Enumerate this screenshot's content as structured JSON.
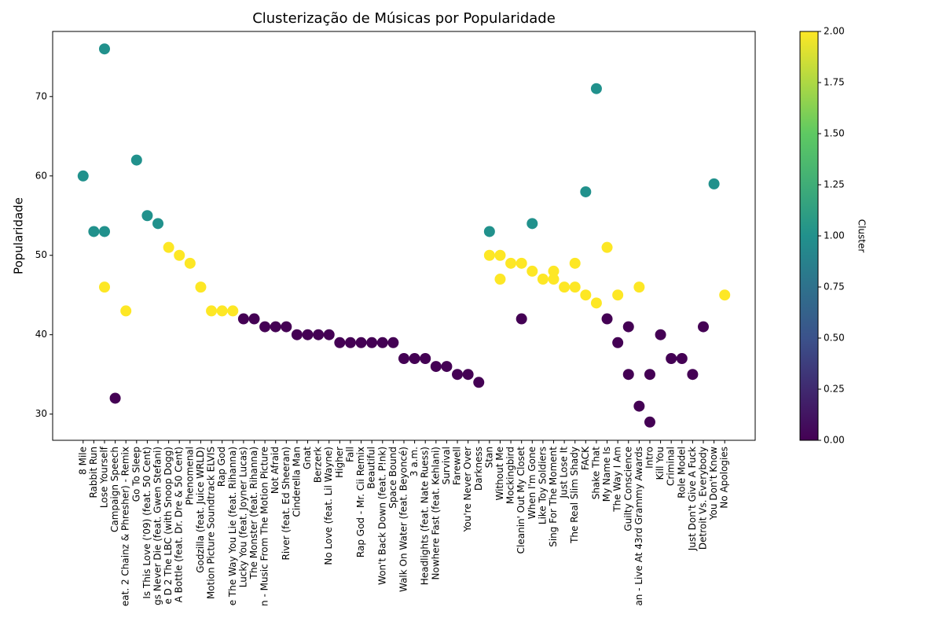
{
  "chart_data": {
    "type": "scatter",
    "title": "Clusterização de Músicas por Popularidade",
    "y_label": "Popularidade",
    "categories": [
      "8 Mile",
      "Rabbit Run",
      "Lose Yourself",
      "Campaign Speech",
      "eat. 2 Chainz & Phresher) - Remix",
      "Go To Sleep",
      "Is This Love ('09) (feat. 50 Cent)",
      "gs Never Die (feat. Gwen Stefani)",
      "e D 2 The LBC (with Snoop Dogg)",
      "A Bottle (feat. Dr. Dre & 50 Cent)",
      "Phenomenal",
      "Godzilla (feat. Juice WRLD)",
      "Motion Picture Soundtrack ELVIS",
      "Rap God",
      "e The Way You Lie (feat. Rihanna)",
      "Lucky You (feat. Joyner Lucas)",
      "The Monster (feat. Rihanna)",
      "n - Music From The Motion Picture",
      "Not Afraid",
      "River (feat. Ed Sheeran)",
      "Cinderella Man",
      "Gnat",
      "Berzerk",
      "No Love (feat. Lil Wayne)",
      "Higher",
      "Fall",
      "Rap God - Mr. Cii Remix",
      "Beautiful",
      "Won't Back Down (feat. P!nk)",
      "Space Bound",
      "Walk On Water (feat. Beyoncé)",
      "3 a.m.",
      "Headlights (feat. Nate Ruess)",
      "Nowhere Fast (feat. Kehlani)",
      "Survival",
      "Farewell",
      "You're Never Over",
      "Darkness",
      "Stan",
      "Without Me",
      "Mockingbird",
      "Cleanin' Out My Closet",
      "When I'm Gone",
      "Like Toy Soldiers",
      "Sing For The Moment",
      "Just Lose It",
      "The Real Slim Shady",
      "FACK",
      "Shake That",
      "My Name Is",
      "The Way I Am",
      "Guilty Conscience",
      "an - Live At 43rd Grammy Awards",
      "Intro",
      "Kill You",
      "Criminal",
      "Role Model",
      "Just Don't Give A Fuck",
      "Detroit Vs. Everybody",
      "You Don't Know",
      "No Apologies"
    ],
    "points": {
      "x": [
        "8 Mile",
        "Rabbit Run",
        "Lose Yourself",
        "Lose Yourself",
        "Lose Yourself",
        "Campaign Speech",
        "eat. 2 Chainz & Phresher) - Remix",
        "Go To Sleep",
        "Is This Love ('09) (feat. 50 Cent)",
        "gs Never Die (feat. Gwen Stefani)",
        "e D 2 The LBC (with Snoop Dogg)",
        "A Bottle (feat. Dr. Dre & 50 Cent)",
        "Phenomenal",
        "Godzilla (feat. Juice WRLD)",
        "Motion Picture Soundtrack ELVIS",
        "Rap God",
        "e The Way You Lie (feat. Rihanna)",
        "Lucky You (feat. Joyner Lucas)",
        "The Monster (feat. Rihanna)",
        "n - Music From The Motion Picture",
        "Not Afraid",
        "River (feat. Ed Sheeran)",
        "Cinderella Man",
        "Gnat",
        "Berzerk",
        "No Love (feat. Lil Wayne)",
        "Higher",
        "Fall",
        "Rap God - Mr. Cii Remix",
        "Beautiful",
        "Won't Back Down (feat. P!nk)",
        "Space Bound",
        "Walk On Water (feat. Beyoncé)",
        "3 a.m.",
        "Headlights (feat. Nate Ruess)",
        "Nowhere Fast (feat. Kehlani)",
        "Survival",
        "Farewell",
        "You're Never Over",
        "Darkness",
        "Stan",
        "Stan",
        "Without Me",
        "Without Me",
        "Mockingbird",
        "Cleanin' Out My Closet",
        "Cleanin' Out My Closet",
        "When I'm Gone",
        "When I'm Gone",
        "Like Toy Soldiers",
        "Sing For The Moment",
        "Sing For The Moment",
        "Just Lose It",
        "The Real Slim Shady",
        "The Real Slim Shady",
        "FACK",
        "FACK",
        "Shake That",
        "Shake That",
        "My Name Is",
        "My Name Is",
        "The Way I Am",
        "The Way I Am",
        "Guilty Conscience",
        "Guilty Conscience",
        "an - Live At 43rd Grammy Awards",
        "an - Live At 43rd Grammy Awards",
        "Intro",
        "Intro",
        "Kill You",
        "Criminal",
        "Role Model",
        "Just Don't Give A Fuck",
        "Detroit Vs. Everybody",
        "You Don't Know",
        "No Apologies"
      ],
      "y": [
        60,
        53,
        76,
        53,
        46,
        32,
        43,
        62,
        55,
        54,
        51,
        50,
        49,
        46,
        43,
        43,
        43,
        42,
        42,
        41,
        41,
        41,
        40,
        40,
        40,
        40,
        39,
        39,
        39,
        39,
        39,
        39,
        37,
        37,
        37,
        36,
        36,
        35,
        35,
        34,
        53,
        50,
        50,
        47,
        49,
        49,
        42,
        54,
        48,
        47,
        48,
        47,
        46,
        49,
        46,
        58,
        45,
        71,
        44,
        51,
        42,
        45,
        39,
        41,
        35,
        46,
        31,
        35,
        29,
        40,
        37,
        37,
        35,
        41,
        59,
        45
      ],
      "cluster": [
        1,
        1,
        1,
        1,
        2,
        0,
        2,
        1,
        1,
        1,
        2,
        2,
        2,
        2,
        2,
        2,
        2,
        0,
        0,
        0,
        0,
        0,
        0,
        0,
        0,
        0,
        0,
        0,
        0,
        0,
        0,
        0,
        0,
        0,
        0,
        0,
        0,
        0,
        0,
        0,
        1,
        2,
        2,
        2,
        2,
        2,
        0,
        1,
        2,
        2,
        2,
        2,
        2,
        2,
        2,
        1,
        2,
        1,
        2,
        2,
        0,
        2,
        0,
        0,
        0,
        2,
        0,
        0,
        0,
        0,
        0,
        0,
        0,
        0,
        1,
        2
      ]
    },
    "ylim": [
      26.7,
      78.2
    ],
    "yticks": [
      30,
      40,
      50,
      60,
      70
    ],
    "colorbar": {
      "label": "Cluster",
      "lim": [
        0,
        2
      ],
      "ticks": [
        {
          "value": 0,
          "label": "0.00"
        },
        {
          "value": 0.25,
          "label": "0.25"
        },
        {
          "value": 0.5,
          "label": "0.50"
        },
        {
          "value": 0.75,
          "label": "0.75"
        },
        {
          "value": 1,
          "label": "1.00"
        },
        {
          "value": 1.25,
          "label": "1.25"
        },
        {
          "value": 1.5,
          "label": "1.50"
        },
        {
          "value": 1.75,
          "label": "1.75"
        },
        {
          "value": 2,
          "label": "2.00"
        }
      ],
      "colormap": [
        "#440154",
        "#3b528b",
        "#21918c",
        "#5ec962",
        "#fde725"
      ]
    }
  }
}
